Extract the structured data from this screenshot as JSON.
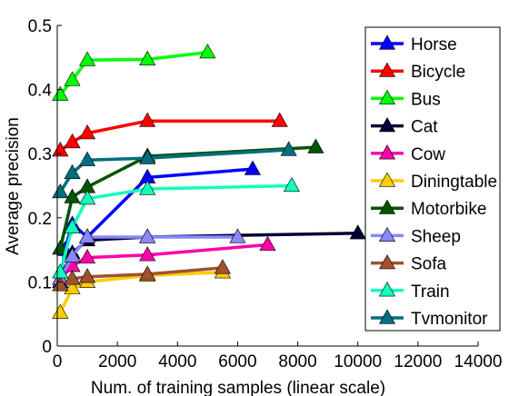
{
  "chart_data": {
    "type": "line",
    "title": "",
    "xlabel": "Num. of training samples (linear scale)",
    "ylabel": "Average precision",
    "xlim": [
      0,
      14000
    ],
    "ylim": [
      0,
      0.5
    ],
    "xticks": [
      0,
      2000,
      4000,
      6000,
      8000,
      10000,
      12000,
      14000
    ],
    "yticks": [
      0,
      0.1,
      0.2,
      0.3,
      0.4,
      0.5
    ],
    "ytick_labels": [
      "0",
      "0.1",
      "0.2",
      "0.3",
      "0.4",
      "0.5"
    ],
    "grid": false,
    "legend": "right",
    "marker": "triangle-up",
    "series": [
      {
        "name": "Horse",
        "color": "#0000ff",
        "x": [
          100,
          250,
          500,
          1000,
          3000,
          6500
        ],
        "y": [
          0.1,
          0.15,
          0.19,
          0.17,
          0.263,
          0.276
        ]
      },
      {
        "name": "Bicycle",
        "color": "#ff0000",
        "x": [
          100,
          500,
          1000,
          3000,
          7400
        ],
        "y": [
          0.305,
          0.318,
          0.332,
          0.351,
          0.351
        ]
      },
      {
        "name": "Bus",
        "color": "#00ff00",
        "x": [
          100,
          500,
          1000,
          3000,
          5000
        ],
        "y": [
          0.392,
          0.415,
          0.446,
          0.447,
          0.458
        ]
      },
      {
        "name": "Cat",
        "color": "#000033",
        "x": [
          100,
          500,
          1000,
          3000,
          10000
        ],
        "y": [
          0.105,
          0.145,
          0.165,
          0.17,
          0.176
        ]
      },
      {
        "name": "Cow",
        "color": "#ff00aa",
        "x": [
          100,
          500,
          1000,
          3000,
          7000
        ],
        "y": [
          0.105,
          0.125,
          0.138,
          0.142,
          0.158
        ]
      },
      {
        "name": "Diningtable",
        "color": "#ffcc00",
        "x": [
          100,
          500,
          1000,
          3000,
          5500
        ],
        "y": [
          0.052,
          0.09,
          0.1,
          0.11,
          0.115
        ]
      },
      {
        "name": "Motorbike",
        "color": "#005500",
        "x": [
          100,
          500,
          1000,
          3000,
          8600
        ],
        "y": [
          0.152,
          0.232,
          0.248,
          0.296,
          0.31
        ]
      },
      {
        "name": "Sheep",
        "color": "#8888ff",
        "x": [
          100,
          500,
          1000,
          3000,
          6000
        ],
        "y": [
          0.105,
          0.14,
          0.17,
          0.17,
          0.17
        ]
      },
      {
        "name": "Sofa",
        "color": "#a0522d",
        "x": [
          100,
          500,
          1000,
          3000,
          5500
        ],
        "y": [
          0.095,
          0.105,
          0.108,
          0.112,
          0.122
        ]
      },
      {
        "name": "Train",
        "color": "#11ffbb",
        "x": [
          100,
          500,
          1000,
          3000,
          7800
        ],
        "y": [
          0.115,
          0.185,
          0.23,
          0.245,
          0.25
        ]
      },
      {
        "name": "Tvmonitor",
        "color": "#006e80",
        "x": [
          100,
          500,
          1000,
          3000,
          7700
        ],
        "y": [
          0.24,
          0.27,
          0.29,
          0.293,
          0.306
        ]
      }
    ]
  }
}
